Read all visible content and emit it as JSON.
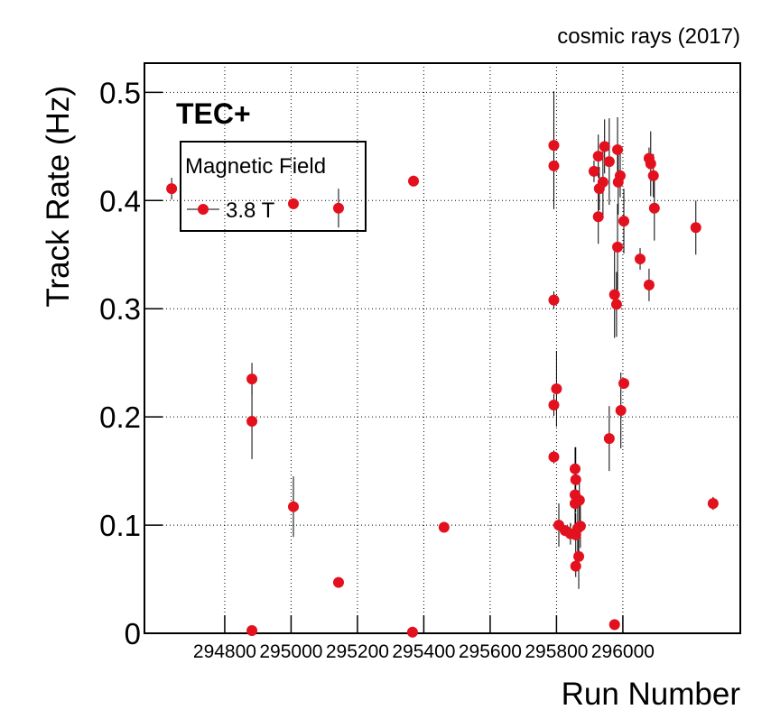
{
  "chart_data": {
    "type": "scatter",
    "annotation": "cosmic rays (2017)",
    "label": "TEC+",
    "x_label": "Run Number",
    "y_label": "Track Rate (Hz)",
    "legend_title": "Magnetic Field",
    "legend_position": "upper left",
    "grid": true,
    "xlim": [
      294558,
      296354
    ],
    "xticks": [
      294800,
      295000,
      295200,
      295400,
      295600,
      295800,
      296000
    ],
    "ylim": [
      0,
      0.527
    ],
    "yticks": [
      0,
      0.1,
      0.2,
      0.3,
      0.4,
      0.5
    ],
    "series": [
      {
        "name": "3.8 T",
        "color": "#e3101e",
        "x": [
          294640,
          294882,
          294882,
          294882,
          295007,
          295007,
          295143,
          295143,
          295366,
          295369,
          295461,
          295792,
          295792,
          295792,
          295792,
          295792,
          295800,
          295807,
          295826,
          295842,
          295856,
          295858,
          295856,
          295856,
          295858,
          295858,
          295864,
          295867,
          295869,
          295872,
          295913,
          295926,
          295929,
          295926,
          295940,
          295945,
          295959,
          295959,
          295975,
          295981,
          295984,
          295984,
          295986,
          295992,
          295994,
          296003,
          296003,
          295975,
          296052,
          296079,
          296079,
          296084,
          296092,
          296095,
          296220,
          296272
        ],
        "values": [
          0.411,
          0.235,
          0.196,
          0.0025,
          0.397,
          0.117,
          0.393,
          0.047,
          0.001,
          0.418,
          0.098,
          0.451,
          0.432,
          0.308,
          0.211,
          0.163,
          0.226,
          0.1,
          0.095,
          0.092,
          0.152,
          0.142,
          0.128,
          0.12,
          0.091,
          0.062,
          0.097,
          0.071,
          0.123,
          0.099,
          0.427,
          0.441,
          0.411,
          0.385,
          0.417,
          0.45,
          0.436,
          0.18,
          0.313,
          0.304,
          0.357,
          0.447,
          0.417,
          0.423,
          0.206,
          0.231,
          0.381,
          0.008,
          0.346,
          0.322,
          0.439,
          0.434,
          0.423,
          0.393,
          0.375,
          0.12
        ],
        "errors": [
          0.01,
          0.015,
          0.035,
          0.001,
          0.005,
          0.028,
          0.018,
          0.002,
          0.001,
          0.005,
          0.002,
          0.05,
          0.04,
          0.008,
          0.01,
          0.006,
          0.035,
          0.02,
          0.005,
          0.01,
          0.02,
          0.03,
          0.02,
          0.03,
          0.02,
          0.01,
          0.025,
          0.03,
          0.02,
          0.02,
          0.01,
          0.02,
          0.02,
          0.025,
          0.03,
          0.025,
          0.04,
          0.03,
          0.04,
          0.03,
          0.04,
          0.03,
          0.03,
          0.02,
          0.035,
          0.005,
          0.03,
          0.005,
          0.01,
          0.015,
          0.01,
          0.03,
          0.02,
          0.03,
          0.025,
          0.006
        ]
      }
    ]
  }
}
